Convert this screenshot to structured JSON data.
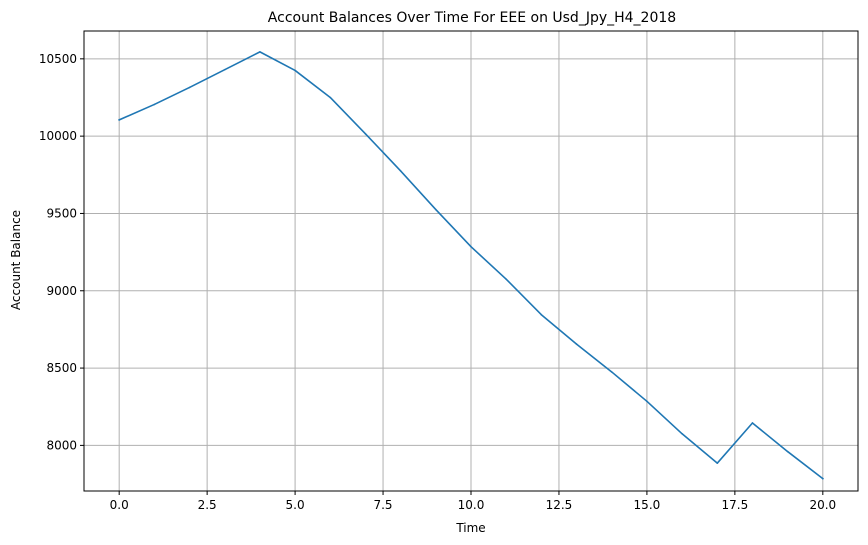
{
  "chart_data": {
    "type": "line",
    "title": "Account Balances Over Time For EEE on Usd_Jpy_H4_2018",
    "xlabel": "Time",
    "ylabel": "Account Balance",
    "xlim": [
      -1.0,
      21.0
    ],
    "ylim": [
      7705,
      10680
    ],
    "x_ticks": [
      0.0,
      2.5,
      5.0,
      7.5,
      10.0,
      12.5,
      15.0,
      17.5,
      20.0
    ],
    "x_tick_labels": [
      "0.0",
      "2.5",
      "5.0",
      "7.5",
      "10.0",
      "12.5",
      "15.0",
      "17.5",
      "20.0"
    ],
    "y_ticks": [
      8000,
      8500,
      9000,
      9500,
      10000,
      10500
    ],
    "y_tick_labels": [
      "8000",
      "8500",
      "9000",
      "9500",
      "10000",
      "10500"
    ],
    "grid": true,
    "series": [
      {
        "name": "Account Balance",
        "color": "#1f77b4",
        "x": [
          0,
          1,
          2,
          3,
          4,
          5,
          6,
          7,
          8,
          9,
          10,
          11,
          12,
          13,
          14,
          15,
          16,
          17,
          18,
          19,
          20
        ],
        "values": [
          10105,
          10205,
          10315,
          10430,
          10545,
          10425,
          10250,
          10015,
          9775,
          9525,
          9285,
          9075,
          8845,
          8655,
          8475,
          8285,
          8075,
          7885,
          8145,
          7960,
          7785
        ]
      }
    ]
  }
}
